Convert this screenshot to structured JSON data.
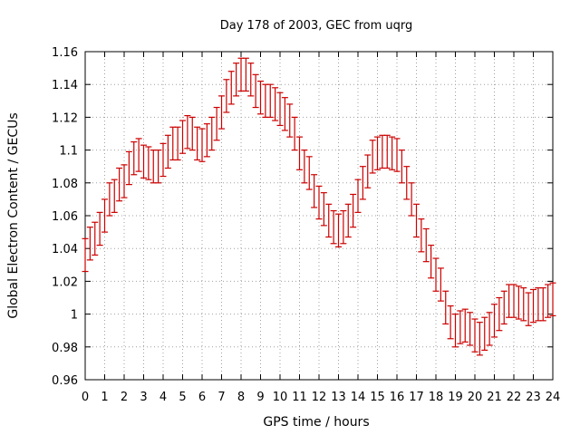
{
  "chart_data": {
    "type": "scatter",
    "title": "Day 178 of 2003, GEC from uqrg",
    "xlabel": "GPS time / hours",
    "ylabel": "Global Electron Content / GECUs",
    "xlim": [
      0,
      24
    ],
    "ylim": [
      0.96,
      1.16
    ],
    "x_ticks": [
      0,
      1,
      2,
      3,
      4,
      5,
      6,
      7,
      8,
      9,
      10,
      11,
      12,
      13,
      14,
      15,
      16,
      17,
      18,
      19,
      20,
      21,
      22,
      23,
      24
    ],
    "y_ticks": [
      0.96,
      0.98,
      1,
      1.02,
      1.04,
      1.06,
      1.08,
      1.1,
      1.12,
      1.14,
      1.16
    ],
    "y_tick_labels": [
      "0.96",
      "0.98",
      "1",
      "1.02",
      "1.04",
      "1.06",
      "1.08",
      "1.1",
      "1.12",
      "1.14",
      "1.16"
    ],
    "grid": true,
    "error_bars": true,
    "error": 0.01,
    "color": "#cc0000",
    "series": [
      {
        "x": [
          0,
          0.25,
          0.5,
          0.75,
          1,
          1.25,
          1.5,
          1.75,
          2,
          2.25,
          2.5,
          2.75,
          3,
          3.25,
          3.5,
          3.75,
          4,
          4.25,
          4.5,
          4.75,
          5,
          5.25,
          5.5,
          5.75,
          6,
          6.25,
          6.5,
          6.75,
          7,
          7.25,
          7.5,
          7.75,
          8,
          8.25,
          8.5,
          8.75,
          9,
          9.25,
          9.5,
          9.75,
          10,
          10.25,
          10.5,
          10.75,
          11,
          11.25,
          11.5,
          11.75,
          12,
          12.25,
          12.5,
          12.75,
          13,
          13.25,
          13.5,
          13.75,
          14,
          14.25,
          14.5,
          14.75,
          15,
          15.25,
          15.5,
          15.75,
          16,
          16.25,
          16.5,
          16.75,
          17,
          17.25,
          17.5,
          17.75,
          18,
          18.25,
          18.5,
          18.75,
          19,
          19.25,
          19.5,
          19.75,
          20,
          20.25,
          20.5,
          20.75,
          21,
          21.25,
          21.5,
          21.75,
          22,
          22.25,
          22.5,
          22.75,
          23,
          23.25,
          23.5,
          23.75,
          24
        ],
        "y": [
          1.036,
          1.043,
          1.046,
          1.052,
          1.06,
          1.07,
          1.072,
          1.079,
          1.081,
          1.089,
          1.095,
          1.097,
          1.093,
          1.092,
          1.09,
          1.09,
          1.094,
          1.099,
          1.104,
          1.104,
          1.108,
          1.111,
          1.11,
          1.104,
          1.103,
          1.106,
          1.11,
          1.116,
          1.123,
          1.133,
          1.138,
          1.143,
          1.146,
          1.146,
          1.143,
          1.136,
          1.132,
          1.13,
          1.13,
          1.128,
          1.125,
          1.122,
          1.118,
          1.11,
          1.098,
          1.09,
          1.086,
          1.075,
          1.068,
          1.064,
          1.057,
          1.053,
          1.051,
          1.053,
          1.057,
          1.063,
          1.072,
          1.08,
          1.087,
          1.096,
          1.098,
          1.099,
          1.099,
          1.098,
          1.097,
          1.09,
          1.08,
          1.07,
          1.057,
          1.048,
          1.042,
          1.032,
          1.024,
          1.018,
          1.004,
          0.995,
          0.99,
          0.992,
          0.993,
          0.991,
          0.987,
          0.985,
          0.988,
          0.991,
          0.996,
          1.0,
          1.004,
          1.008,
          1.008,
          1.007,
          1.006,
          1.003,
          1.005,
          1.006,
          1.006,
          1.008,
          1.009
        ]
      }
    ]
  }
}
